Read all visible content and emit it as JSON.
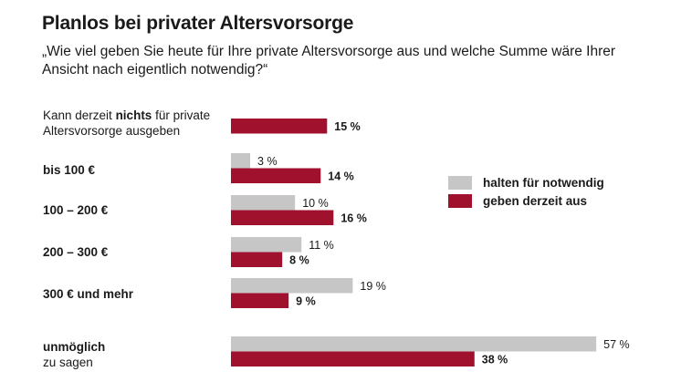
{
  "title": "Planlos bei privater Altersvorsorge",
  "subtitle": "„Wie viel geben Sie heute für Ihre private Altersvorsorge aus und welche Summe wäre Ihrer Ansicht nach eigentlich notwendig?“",
  "colors": {
    "needed": "#c6c6c6",
    "spend": "#a0112e"
  },
  "chart_data": {
    "type": "bar",
    "orientation": "horizontal",
    "categories": [
      {
        "parts": [
          [
            "Kann derzeit ",
            false
          ],
          [
            "nichts",
            true
          ],
          [
            " für private",
            false
          ]
        ],
        "line2": "Altersvorsorge ausgeben"
      },
      {
        "parts": [
          [
            "bis 100 €",
            true
          ]
        ],
        "line2": ""
      },
      {
        "parts": [
          [
            "100 – 200 €",
            true
          ]
        ],
        "line2": ""
      },
      {
        "parts": [
          [
            "200 – 300 €",
            true
          ]
        ],
        "line2": ""
      },
      {
        "parts": [
          [
            "300 € und mehr",
            true
          ]
        ],
        "line2": ""
      },
      {
        "parts": [
          [
            "unmöglich",
            true
          ]
        ],
        "line2": "zu sagen"
      }
    ],
    "series": [
      {
        "name": "halten für notwendig",
        "values": [
          null,
          3,
          10,
          11,
          19,
          57
        ],
        "labels": [
          "",
          "3 %",
          "10 %",
          "11 %",
          "19 %",
          "57 %"
        ]
      },
      {
        "name": "geben derzeit aus",
        "values": [
          15,
          14,
          16,
          8,
          9,
          38
        ],
        "labels": [
          "15 %",
          "14 %",
          "16 %",
          "8 %",
          "9 %",
          "38 %"
        ]
      }
    ],
    "legend": "right",
    "xlim": [
      0,
      57
    ],
    "grid": false
  }
}
